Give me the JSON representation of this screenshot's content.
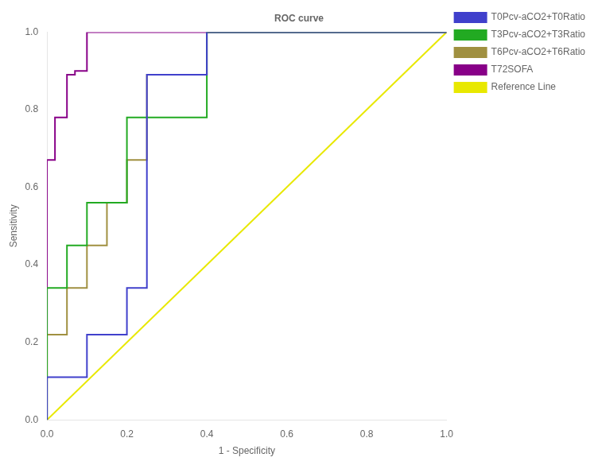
{
  "chart_data": {
    "type": "line",
    "title": "ROC curve",
    "x_label": "1 - Specificity",
    "y_label": "Sensitivity",
    "xlim": [
      0.0,
      1.0
    ],
    "ylim": [
      0.0,
      1.0
    ],
    "xticks": [
      {
        "value": 0.0,
        "label": "0.0"
      },
      0.2,
      0.4,
      0.6,
      0.8,
      {
        "value": 1.0,
        "label": "1.0"
      }
    ],
    "yticks": [
      {
        "value": 0.0,
        "label": "0.0"
      },
      0.2,
      0.4,
      0.6,
      0.8,
      {
        "value": 1.0,
        "label": "1.0"
      }
    ],
    "grid": false,
    "legend": "right",
    "series": [
      {
        "name": "T0Pcv-aCO2+T0Ratio",
        "color": "#4040cc",
        "x": [
          0.0,
          0.0,
          0.1,
          0.1,
          0.2,
          0.2,
          0.25,
          0.25,
          0.4,
          0.4,
          1.0
        ],
        "values": [
          0.0,
          0.11,
          0.11,
          0.22,
          0.22,
          0.34,
          0.34,
          0.89,
          0.89,
          1.0,
          1.0
        ]
      },
      {
        "name": "T3Pcv-aCO2+T3Ratio",
        "color": "#22aa22",
        "x": [
          0.0,
          0.0,
          0.05,
          0.05,
          0.1,
          0.1,
          0.2,
          0.2,
          0.4,
          0.4,
          1.0
        ],
        "values": [
          0.0,
          0.34,
          0.34,
          0.45,
          0.45,
          0.56,
          0.56,
          0.78,
          0.78,
          1.0,
          1.0
        ]
      },
      {
        "name": "T6Pcv-aCO2+T6Ratio",
        "color": "#a09040",
        "x": [
          0.0,
          0.0,
          0.05,
          0.05,
          0.1,
          0.1,
          0.15,
          0.15,
          0.2,
          0.2,
          0.25,
          0.25,
          0.4,
          0.4,
          1.0
        ],
        "values": [
          0.0,
          0.22,
          0.22,
          0.34,
          0.34,
          0.45,
          0.45,
          0.56,
          0.56,
          0.67,
          0.67,
          0.89,
          0.89,
          1.0,
          1.0
        ]
      },
      {
        "name": "T72SOFA",
        "color": "#880088",
        "x": [
          0.0,
          0.0,
          0.02,
          0.02,
          0.05,
          0.05,
          0.07,
          0.07,
          0.1,
          0.1,
          1.0
        ],
        "values": [
          0.0,
          0.67,
          0.67,
          0.78,
          0.78,
          0.89,
          0.89,
          0.9,
          0.9,
          1.0,
          1.0
        ]
      },
      {
        "name": "Reference Line",
        "color": "#e8e800",
        "x": [
          0,
          1
        ],
        "values": [
          0,
          1
        ]
      }
    ]
  }
}
